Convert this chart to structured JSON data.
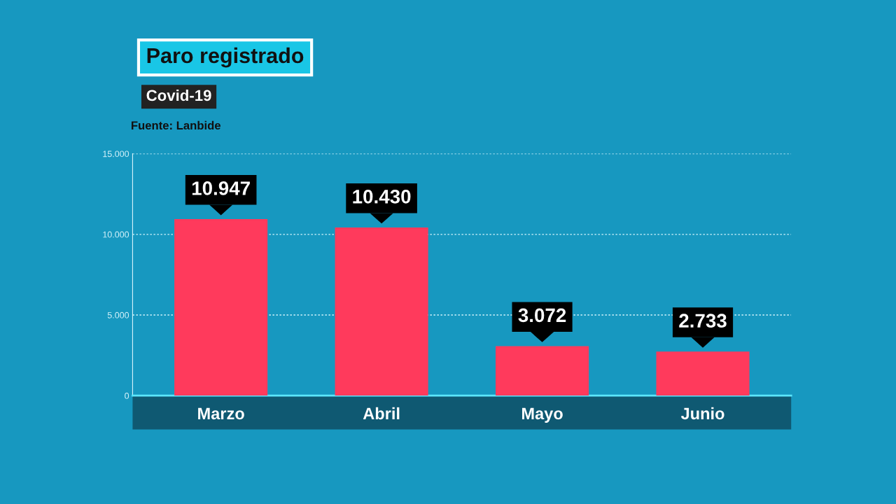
{
  "chart_data": {
    "type": "bar",
    "title": "Paro registrado",
    "subtitle": "Covid-19",
    "annotations": [
      "Fuente: Lanbide"
    ],
    "categories": [
      "Marzo",
      "Abril",
      "Mayo",
      "Junio"
    ],
    "values": [
      10947,
      10430,
      3072,
      2733
    ],
    "value_labels": [
      "10.947",
      "10.430",
      "3.072",
      "2.733"
    ],
    "color": "#ff3a5c",
    "ylim": [
      0,
      15000
    ],
    "yticks": [
      {
        "value": 0,
        "label": "0"
      },
      {
        "value": 5000,
        "label": "5.000"
      },
      {
        "value": 10000,
        "label": "10.000"
      },
      {
        "value": 15000,
        "label": "15.000"
      }
    ],
    "grid": "y"
  }
}
